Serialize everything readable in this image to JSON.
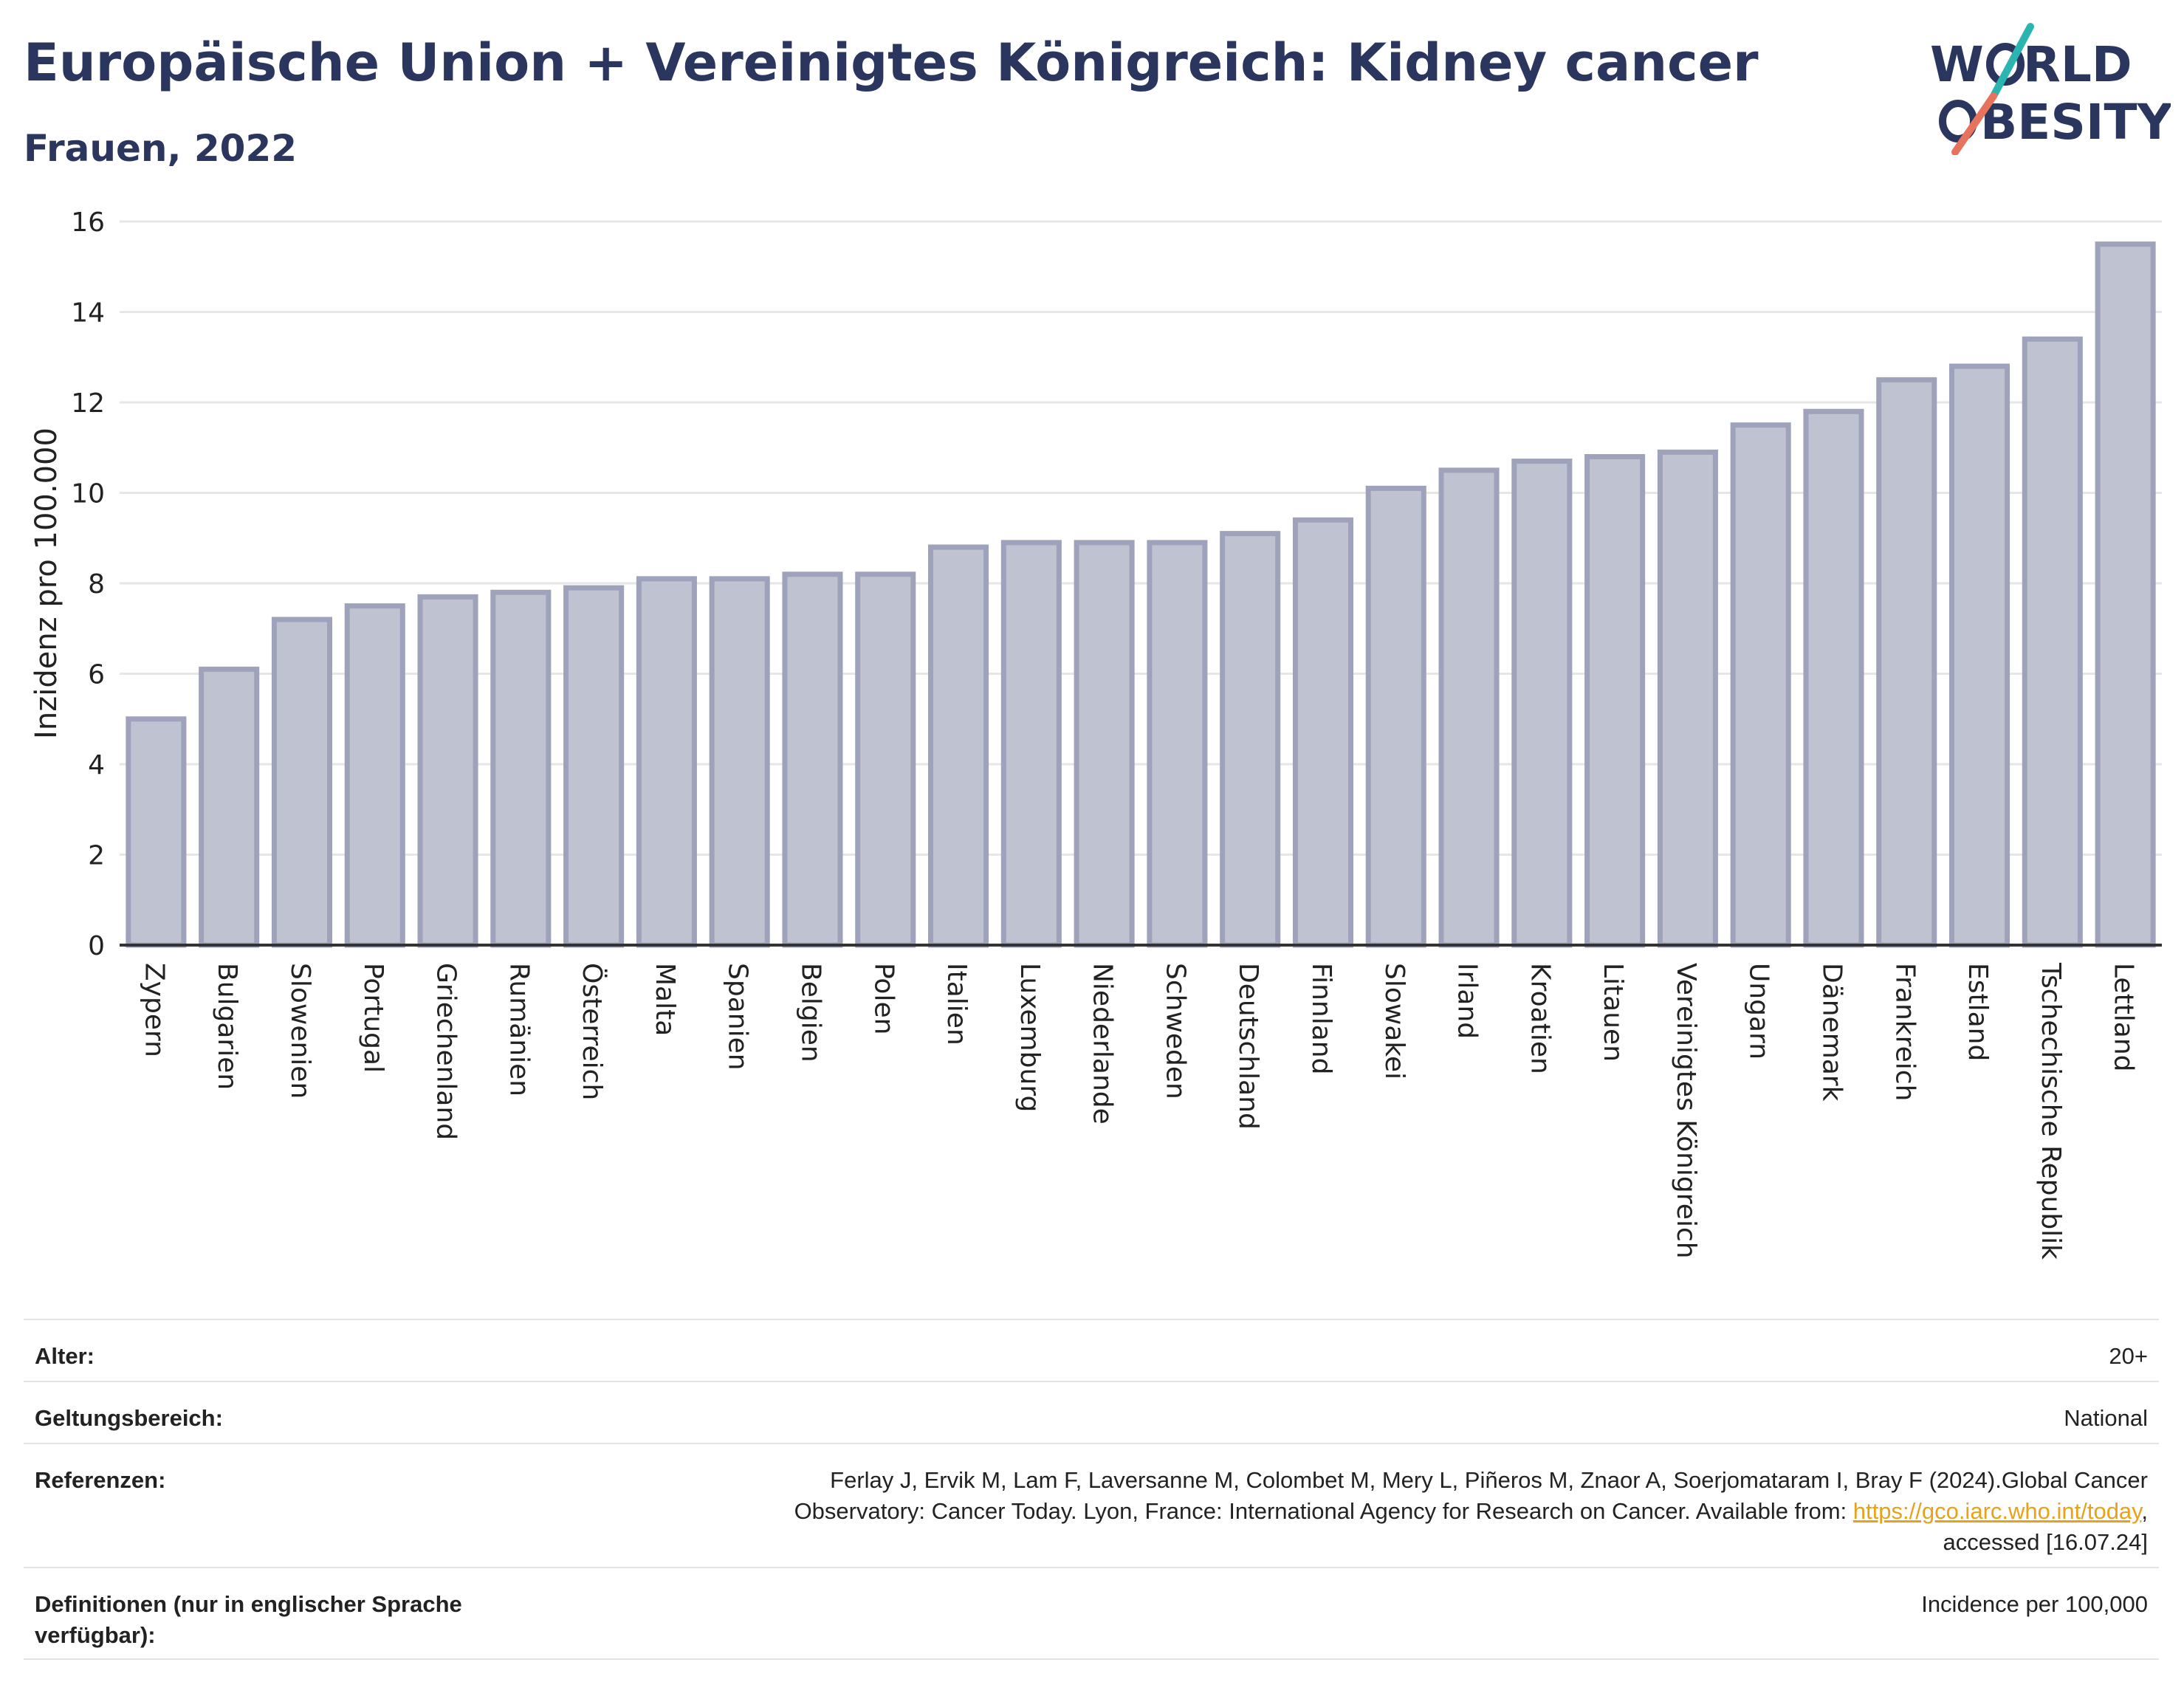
{
  "header": {
    "title": "Europäische Union + Vereinigtes Königreich: Kidney cancer",
    "subtitle": "Frauen, 2022"
  },
  "logo": {
    "line1_start": "W",
    "line1_end": "RLD",
    "line2_end": "BESITY",
    "accent_colors": [
      "#2bb5b0",
      "#e8735d"
    ]
  },
  "colors": {
    "text": "#2b365e",
    "bar_fill": "#bfc2d1",
    "bar_stroke": "#9ea3bb",
    "grid": "#e6e6e6",
    "link": "#e8a21a"
  },
  "chart_data": {
    "type": "bar",
    "ylabel": "Inzidenz pro 100.000",
    "ylim": [
      0,
      16
    ],
    "yticks": [
      0,
      2,
      4,
      6,
      8,
      10,
      12,
      14,
      16
    ],
    "grid": true,
    "categories": [
      "Zypern",
      "Bulgarien",
      "Slowenien",
      "Portugal",
      "Griechenland",
      "Rumänien",
      "Österreich",
      "Malta",
      "Spanien",
      "Belgien",
      "Polen",
      "Italien",
      "Luxemburg",
      "Niederlande",
      "Schweden",
      "Deutschland",
      "Finnland",
      "Slowakei",
      "Irland",
      "Kroatien",
      "Litauen",
      "Vereinigtes Königreich",
      "Ungarn",
      "Dänemark",
      "Frankreich",
      "Estland",
      "Tschechische Republik",
      "Lettland"
    ],
    "values": [
      5.0,
      6.1,
      7.2,
      7.5,
      7.7,
      7.8,
      7.9,
      8.1,
      8.1,
      8.2,
      8.2,
      8.8,
      8.9,
      8.9,
      8.9,
      9.1,
      9.4,
      10.1,
      10.5,
      10.7,
      10.8,
      10.9,
      11.5,
      11.8,
      12.5,
      12.8,
      13.4,
      15.5
    ]
  },
  "meta": {
    "age_label": "Alter:",
    "age_value": "20+",
    "scope_label": "Geltungsbereich:",
    "scope_value": "National",
    "refs_label": "Referenzen:",
    "refs_line1": "Ferlay J, Ervik M, Lam F, Laversanne M, Colombet M, Mery L, Piñeros M, Znaor A, Soerjomataram I, Bray F (2024).Global Cancer",
    "refs_line2_pre": "Observatory: Cancer Today. Lyon, France: International Agency for Research on Cancer. Available from: ",
    "refs_link": "https://gco.iarc.who.int/today",
    "refs_line2_post": ",",
    "refs_line3": "accessed [16.07.24]",
    "defs_label": "Definitionen (nur in englischer Sprache verfügbar):",
    "defs_value": "Incidence per 100,000"
  }
}
